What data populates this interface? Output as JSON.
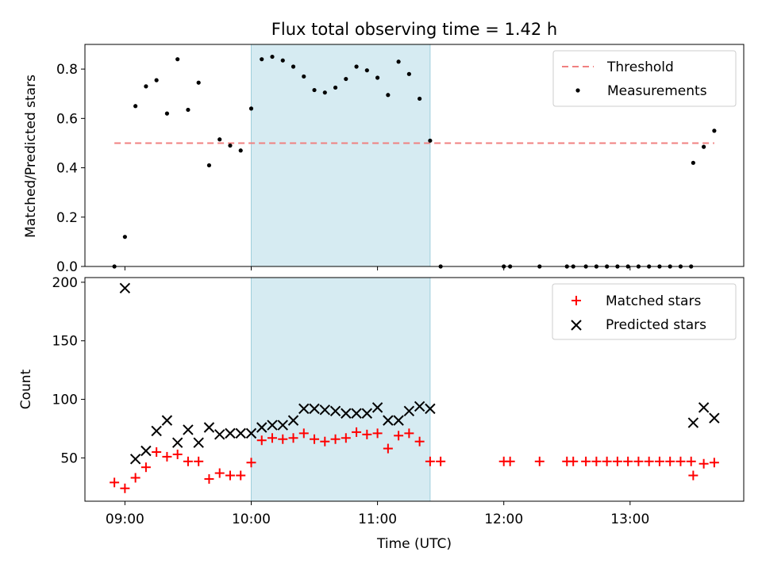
{
  "chart_data": [
    {
      "type": "scatter",
      "title": "Flux total observing time = 1.42 h",
      "xlabel": "",
      "ylabel": "Matched/Predicted stars",
      "ylim": [
        0,
        0.9
      ],
      "xlim": [
        "08:41",
        "13:54"
      ],
      "yticks": [
        "0.0",
        "0.2",
        "0.4",
        "0.6",
        "0.8"
      ],
      "y_tick_values": [
        0,
        0.2,
        0.4,
        0.6,
        0.8
      ],
      "shaded_interval": {
        "start": "10:00",
        "end": "11:25",
        "color": "#add8e6"
      },
      "legend": {
        "placement": "top-right",
        "entries": [
          "Threshold",
          "Measurements"
        ]
      },
      "threshold": {
        "name": "Threshold",
        "value": 0.5,
        "x_start": "08:55",
        "x_end": "13:40",
        "color": "#f08080"
      },
      "series": [
        {
          "name": "Measurements",
          "color": "#000000",
          "points": [
            [
              "08:55",
              0.0
            ],
            [
              "09:00",
              0.12
            ],
            [
              "09:05",
              0.65
            ],
            [
              "09:10",
              0.73
            ],
            [
              "09:15",
              0.755
            ],
            [
              "09:20",
              0.62
            ],
            [
              "09:25",
              0.84
            ],
            [
              "09:30",
              0.635
            ],
            [
              "09:35",
              0.745
            ],
            [
              "09:40",
              0.41
            ],
            [
              "09:45",
              0.515
            ],
            [
              "09:50",
              0.49
            ],
            [
              "09:55",
              0.47
            ],
            [
              "10:00",
              0.64
            ],
            [
              "10:05",
              0.84
            ],
            [
              "10:10",
              0.85
            ],
            [
              "10:15",
              0.835
            ],
            [
              "10:20",
              0.81
            ],
            [
              "10:25",
              0.77
            ],
            [
              "10:30",
              0.715
            ],
            [
              "10:35",
              0.705
            ],
            [
              "10:40",
              0.725
            ],
            [
              "10:45",
              0.76
            ],
            [
              "10:50",
              0.81
            ],
            [
              "10:55",
              0.795
            ],
            [
              "11:00",
              0.765
            ],
            [
              "11:05",
              0.695
            ],
            [
              "11:10",
              0.83
            ],
            [
              "11:15",
              0.78
            ],
            [
              "11:20",
              0.68
            ],
            [
              "11:25",
              0.51
            ],
            [
              "11:30",
              0.0
            ],
            [
              "12:00",
              0.0
            ],
            [
              "12:03",
              0.0
            ],
            [
              "12:17",
              0.0
            ],
            [
              "12:30",
              0.0
            ],
            [
              "12:33",
              0.0
            ],
            [
              "12:39",
              0.0
            ],
            [
              "12:44",
              0.0
            ],
            [
              "12:49",
              0.0
            ],
            [
              "12:54",
              0.0
            ],
            [
              "12:59",
              0.0
            ],
            [
              "13:04",
              0.0
            ],
            [
              "13:09",
              0.0
            ],
            [
              "13:14",
              0.0
            ],
            [
              "13:19",
              0.0
            ],
            [
              "13:24",
              0.0
            ],
            [
              "13:29",
              0.0
            ],
            [
              "13:30",
              0.42
            ],
            [
              "13:35",
              0.485
            ],
            [
              "13:40",
              0.55
            ]
          ]
        }
      ]
    },
    {
      "type": "scatter",
      "title": "",
      "xlabel": "Time (UTC)",
      "ylabel": "Count",
      "ylim": [
        13,
        204
      ],
      "xlim": [
        "08:41",
        "13:54"
      ],
      "xticks": [
        "09:00",
        "10:00",
        "11:00",
        "12:00",
        "13:00"
      ],
      "yticks": [
        "50",
        "100",
        "150",
        "200"
      ],
      "y_tick_values": [
        50,
        100,
        150,
        200
      ],
      "shaded_interval": {
        "start": "10:00",
        "end": "11:25",
        "color": "#add8e6"
      },
      "legend": {
        "placement": "top-right",
        "entries": [
          "Matched stars",
          "Predicted stars"
        ]
      },
      "series": [
        {
          "name": "Matched stars",
          "marker": "plus",
          "color": "#ff0000",
          "points": [
            [
              "08:55",
              29
            ],
            [
              "09:00",
              24
            ],
            [
              "09:05",
              33
            ],
            [
              "09:10",
              42
            ],
            [
              "09:15",
              55
            ],
            [
              "09:20",
              51
            ],
            [
              "09:25",
              53
            ],
            [
              "09:30",
              47
            ],
            [
              "09:35",
              47
            ],
            [
              "09:40",
              32
            ],
            [
              "09:45",
              37
            ],
            [
              "09:50",
              35
            ],
            [
              "09:55",
              35
            ],
            [
              "10:00",
              46
            ],
            [
              "10:05",
              65
            ],
            [
              "10:10",
              67
            ],
            [
              "10:15",
              66
            ],
            [
              "10:20",
              67
            ],
            [
              "10:25",
              71
            ],
            [
              "10:30",
              66
            ],
            [
              "10:35",
              64
            ],
            [
              "10:40",
              66
            ],
            [
              "10:45",
              67
            ],
            [
              "10:50",
              72
            ],
            [
              "10:55",
              70
            ],
            [
              "11:00",
              71
            ],
            [
              "11:05",
              58
            ],
            [
              "11:10",
              69
            ],
            [
              "11:15",
              71
            ],
            [
              "11:20",
              64
            ],
            [
              "11:25",
              47
            ],
            [
              "11:30",
              47
            ],
            [
              "12:00",
              47
            ],
            [
              "12:03",
              47
            ],
            [
              "12:17",
              47
            ],
            [
              "12:30",
              47
            ],
            [
              "12:33",
              47
            ],
            [
              "12:39",
              47
            ],
            [
              "12:44",
              47
            ],
            [
              "12:49",
              47
            ],
            [
              "12:54",
              47
            ],
            [
              "12:59",
              47
            ],
            [
              "13:04",
              47
            ],
            [
              "13:09",
              47
            ],
            [
              "13:14",
              47
            ],
            [
              "13:19",
              47
            ],
            [
              "13:24",
              47
            ],
            [
              "13:29",
              47
            ],
            [
              "13:30",
              35
            ],
            [
              "13:35",
              45
            ],
            [
              "13:40",
              46
            ]
          ]
        },
        {
          "name": "Predicted stars",
          "marker": "x",
          "color": "#000000",
          "points": [
            [
              "09:00",
              195
            ],
            [
              "09:05",
              49
            ],
            [
              "09:10",
              56
            ],
            [
              "09:15",
              73
            ],
            [
              "09:20",
              82
            ],
            [
              "09:25",
              63
            ],
            [
              "09:30",
              74
            ],
            [
              "09:35",
              63
            ],
            [
              "09:40",
              76
            ],
            [
              "09:45",
              70
            ],
            [
              "09:50",
              71
            ],
            [
              "09:55",
              71
            ],
            [
              "10:00",
              71
            ],
            [
              "10:05",
              76
            ],
            [
              "10:10",
              78
            ],
            [
              "10:15",
              78
            ],
            [
              "10:20",
              82
            ],
            [
              "10:25",
              92
            ],
            [
              "10:30",
              92
            ],
            [
              "10:35",
              91
            ],
            [
              "10:40",
              90
            ],
            [
              "10:45",
              88
            ],
            [
              "10:50",
              88
            ],
            [
              "10:55",
              88
            ],
            [
              "11:00",
              93
            ],
            [
              "11:05",
              82
            ],
            [
              "11:10",
              82
            ],
            [
              "11:15",
              90
            ],
            [
              "11:20",
              94
            ],
            [
              "11:25",
              92
            ],
            [
              "13:30",
              80
            ],
            [
              "13:35",
              93
            ],
            [
              "13:40",
              84
            ]
          ]
        }
      ]
    }
  ]
}
